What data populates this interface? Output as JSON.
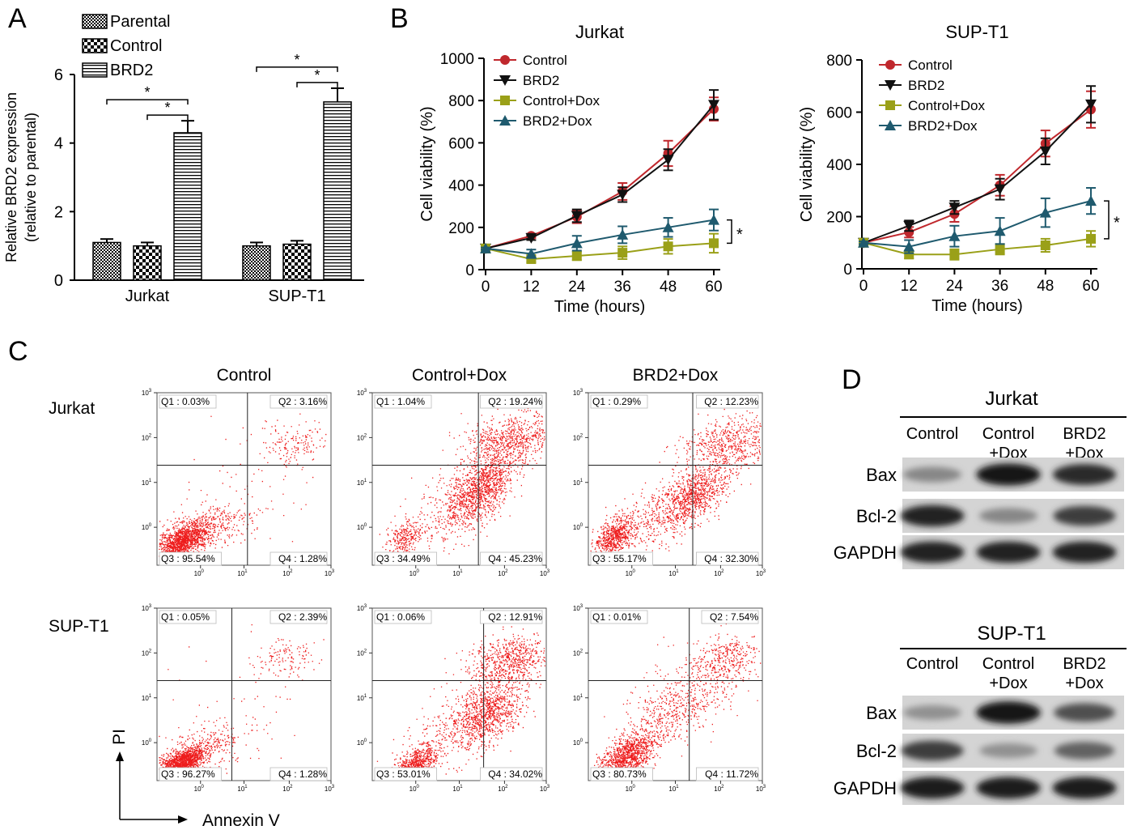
{
  "panel_labels": [
    "A",
    "B",
    "C",
    "D"
  ],
  "chart_data": [
    {
      "id": "A",
      "type": "bar",
      "ylabel_lines": [
        "Relative BRD2 expression",
        "(relative to parental)"
      ],
      "ylim": [
        0,
        6
      ],
      "yticks": [
        0,
        2,
        4,
        6
      ],
      "groups": [
        "Jurkat",
        "SUP-T1"
      ],
      "series": [
        {
          "name": "Parental",
          "pattern": "check-fine",
          "values": [
            1.1,
            1.0
          ],
          "errors": [
            0.1,
            0.1
          ]
        },
        {
          "name": "Control",
          "pattern": "check-coarse",
          "values": [
            1.0,
            1.05
          ],
          "errors": [
            0.1,
            0.1
          ]
        },
        {
          "name": "BRD2",
          "pattern": "horizontal-stripes",
          "values": [
            4.3,
            5.2
          ],
          "errors": [
            0.35,
            0.4
          ]
        }
      ],
      "annotations": [
        "*",
        "*",
        "*",
        "*"
      ],
      "legend_position": "top-left"
    },
    {
      "id": "B1",
      "type": "line",
      "title": "Jurkat",
      "xlabel": "Time (hours)",
      "ylabel": "Cell viability (%)",
      "x": [
        0,
        12,
        24,
        36,
        48,
        60
      ],
      "xlim": [
        0,
        60
      ],
      "ylim": [
        0,
        1000
      ],
      "xticks": [
        0,
        12,
        24,
        36,
        48,
        60
      ],
      "yticks": [
        0,
        200,
        400,
        600,
        800,
        1000
      ],
      "series": [
        {
          "name": "Control",
          "marker": "circle",
          "color": "#c0282d",
          "values": [
            100,
            160,
            250,
            370,
            550,
            760
          ],
          "errors": [
            5,
            10,
            30,
            40,
            60,
            55
          ]
        },
        {
          "name": "BRD2",
          "marker": "triangle-down",
          "color": "#111111",
          "values": [
            100,
            150,
            255,
            355,
            520,
            780
          ],
          "errors": [
            5,
            10,
            30,
            35,
            50,
            70
          ]
        },
        {
          "name": "Control+Dox",
          "marker": "square",
          "color": "#9aa018",
          "values": [
            100,
            50,
            65,
            80,
            110,
            125
          ],
          "errors": [
            5,
            15,
            20,
            30,
            35,
            45
          ]
        },
        {
          "name": "BRD2+Dox",
          "marker": "triangle-up",
          "color": "#1f5a6e",
          "values": [
            100,
            75,
            125,
            165,
            200,
            235
          ],
          "errors": [
            5,
            20,
            35,
            40,
            45,
            50
          ]
        }
      ],
      "significance": "*",
      "legend_position": "top-left"
    },
    {
      "id": "B2",
      "type": "line",
      "title": "SUP-T1",
      "xlabel": "Time (hours)",
      "ylabel": "Cell viability (%)",
      "x": [
        0,
        12,
        24,
        36,
        48,
        60
      ],
      "xlim": [
        0,
        60
      ],
      "ylim": [
        0,
        800
      ],
      "xticks": [
        0,
        12,
        24,
        36,
        48,
        60
      ],
      "yticks": [
        0,
        200,
        400,
        600,
        800
      ],
      "series": [
        {
          "name": "Control",
          "marker": "circle",
          "color": "#c0282d",
          "values": [
            100,
            140,
            210,
            320,
            480,
            610
          ],
          "errors": [
            5,
            20,
            30,
            40,
            50,
            70
          ]
        },
        {
          "name": "BRD2",
          "marker": "triangle-down",
          "color": "#111111",
          "values": [
            100,
            165,
            235,
            305,
            450,
            630
          ],
          "errors": [
            5,
            20,
            25,
            40,
            50,
            70
          ]
        },
        {
          "name": "Control+Dox",
          "marker": "square",
          "color": "#9aa018",
          "values": [
            100,
            55,
            55,
            75,
            90,
            115
          ],
          "errors": [
            5,
            15,
            20,
            20,
            25,
            30
          ]
        },
        {
          "name": "BRD2+Dox",
          "marker": "triangle-up",
          "color": "#1f5a6e",
          "values": [
            100,
            85,
            125,
            145,
            215,
            260
          ],
          "errors": [
            5,
            25,
            40,
            50,
            55,
            50
          ]
        }
      ],
      "significance": "*",
      "legend_position": "top-left"
    }
  ],
  "flow": {
    "column_titles": [
      "Control",
      "Control+Dox",
      "BRD2+Dox"
    ],
    "row_labels": [
      "Jurkat",
      "SUP-T1"
    ],
    "xlabel": "Annexin V",
    "ylabel": "PI",
    "tick_exponents": [
      "0",
      "1",
      "2",
      "3"
    ],
    "plots": [
      [
        {
          "q1": "Q1 : 0.03%",
          "q2": "Q2 : 3.16%",
          "q3": "Q3 : 95.54%",
          "q4": "Q4 : 1.28%"
        },
        {
          "q1": "Q1 : 1.04%",
          "q2": "Q2 : 19.24%",
          "q3": "Q3 : 34.49%",
          "q4": "Q4 : 45.23%"
        },
        {
          "q1": "Q1 : 0.29%",
          "q2": "Q2 : 12.23%",
          "q3": "Q3 : 55.17%",
          "q4": "Q4 : 32.30%"
        }
      ],
      [
        {
          "q1": "Q1 : 0.05%",
          "q2": "Q2 : 2.39%",
          "q3": "Q3 : 96.27%",
          "q4": "Q4 : 1.28%"
        },
        {
          "q1": "Q1 : 0.06%",
          "q2": "Q2 : 12.91%",
          "q3": "Q3 : 53.01%",
          "q4": "Q4 : 34.02%"
        },
        {
          "q1": "Q1 : 0.01%",
          "q2": "Q2 : 7.54%",
          "q3": "Q3 : 80.73%",
          "q4": "Q4 : 11.72%"
        }
      ]
    ]
  },
  "blot": {
    "groups": [
      {
        "title": "Jurkat",
        "lanes": [
          [
            "Control"
          ],
          [
            "Control",
            "+Dox"
          ],
          [
            "BRD2",
            "+Dox"
          ]
        ],
        "rows": [
          {
            "name": "Bax",
            "intensity": [
              0.35,
              0.95,
              0.85
            ]
          },
          {
            "name": "Bcl-2",
            "intensity": [
              0.9,
              0.35,
              0.75
            ]
          },
          {
            "name": "GAPDH",
            "intensity": [
              0.9,
              0.9,
              0.9
            ]
          }
        ]
      },
      {
        "title": "SUP-T1",
        "lanes": [
          [
            "Control"
          ],
          [
            "Control",
            "+Dox"
          ],
          [
            "BRD2",
            "+Dox"
          ]
        ],
        "rows": [
          {
            "name": "Bax",
            "intensity": [
              0.3,
              0.98,
              0.65
            ]
          },
          {
            "name": "Bcl-2",
            "intensity": [
              0.75,
              0.3,
              0.55
            ]
          },
          {
            "name": "GAPDH",
            "intensity": [
              0.92,
              0.92,
              0.92
            ]
          }
        ]
      }
    ]
  }
}
